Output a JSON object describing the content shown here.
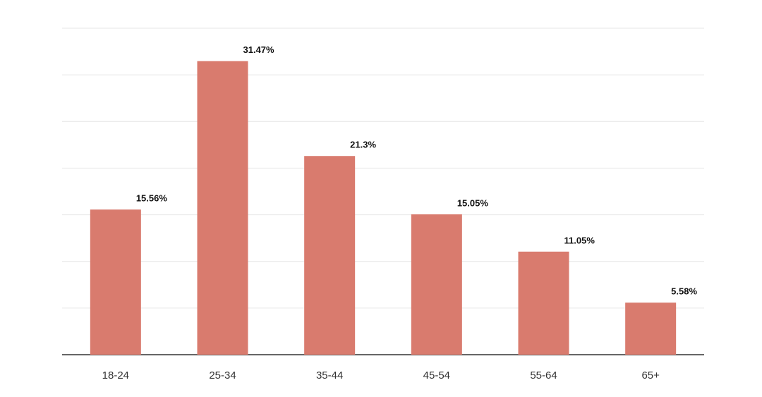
{
  "chart_data": {
    "type": "bar",
    "categories": [
      "18-24",
      "25-34",
      "35-44",
      "45-54",
      "55-64",
      "65+"
    ],
    "values": [
      15.56,
      31.47,
      21.3,
      15.05,
      11.05,
      5.58
    ],
    "value_labels": [
      "15.56%",
      "31.47%",
      "21.3%",
      "15.05%",
      "11.05%",
      "5.58%"
    ],
    "color": "#d97b6e",
    "ylim": [
      0,
      35
    ],
    "yticks": [
      0,
      5,
      10,
      15,
      20,
      25,
      30,
      35
    ],
    "grid": true
  }
}
